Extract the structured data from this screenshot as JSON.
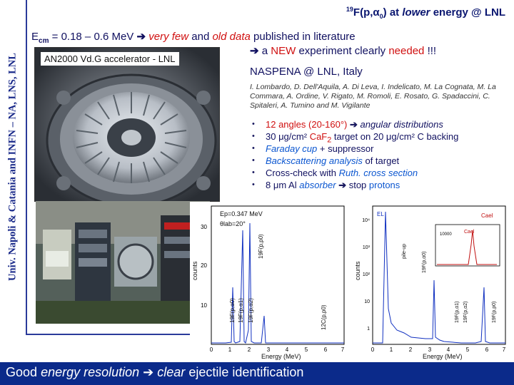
{
  "sidebar": {
    "institution": "Univ. Napoli & Catania and INFN – NA, LNS, LNL"
  },
  "title": {
    "iso_mass": "19",
    "reaction_pre": "F(p,",
    "alpha": "α",
    "alpha_sub": "0",
    "reaction_post": ") at",
    "lower": "lower",
    "energy_post": "energy @ LNL"
  },
  "intro": {
    "e": "E",
    "cm": "cm",
    "range": "= 0.18 – 0.6 MeV",
    "arrow": "➔",
    "very_few": "very few",
    "and": "and",
    "old_data": "old data",
    "published": "published in literature",
    "new_pre": "a",
    "new_word": "NEW",
    "new_experiment": "experiment clearly",
    "needed": "needed",
    "bangs": "!!!"
  },
  "photos": {
    "accelerator_label": "AN2000 Vd.G accelerator - LNL"
  },
  "naspena": {
    "label": "NASPENA @ LNL, Italy"
  },
  "authors": {
    "text": "I. Lombardo, D. Dell'Aquila, A. Di Leva, I. Indelicato, M. La Cognata, M. La Commara, A. Ordine, V. Rigato, M. Romoli, E. Rosato, G. Spadaccini, C. Spitaleri, A. Tumino and M. Vigilante"
  },
  "bullets": {
    "b1_a": "12 angles",
    "b1_b": "(20-160°)",
    "b1_c": "angular distributions",
    "b2_a": "30 μg/cm²",
    "b2_b": "CaF",
    "b2_sub": "2",
    "b2_c": "target on 20 μg/cm² C backing",
    "b3_a": "Faraday cup",
    "b3_b": "+ suppressor",
    "b4_a": "Backscattering analysis",
    "b4_b": "of target",
    "b5_a": "Cross-check with",
    "b5_b": "Ruth. cross section",
    "b6_a": "8 μm Al",
    "b6_b": "absorber",
    "b6_c": "stop",
    "b6_d": "protons",
    "arrow": "➔"
  },
  "spectra": {
    "left": {
      "ep": "Ep=0.347 MeV",
      "theta": "θlab=20°",
      "ylabel": "counts",
      "xlabel": "Energy (MeV)",
      "yticks": [
        "10",
        "20",
        "30"
      ],
      "xticks": [
        "0",
        "1",
        "2",
        "3",
        "4",
        "5",
        "6",
        "7"
      ],
      "peak_labels": [
        "19F(p,p0)",
        "19F(p,α0)",
        "19F(p,α1)",
        "19F(p,α2)",
        "12C(p,p0)"
      ]
    },
    "right": {
      "el": "EL",
      "ca": "Cael",
      "inset": "Cael",
      "inset_tick": "10000",
      "ylabel": "counts",
      "xlabel": "Energy (MeV)",
      "yticks": [
        "1",
        "10",
        "10²",
        "10³",
        "10⁴"
      ],
      "xticks": [
        "0",
        "1",
        "2",
        "3",
        "4",
        "5",
        "6",
        "7"
      ],
      "peak_labels": [
        "pile-up",
        "19F(p,α0)",
        "19F(p,α1)",
        "19F(p,α2)",
        "19F(p,p0)"
      ]
    }
  },
  "footer": {
    "good": "Good",
    "energy_resolution": "energy resolution",
    "arrow": "➔",
    "clear": "clear",
    "ejectile": "ejectile identification"
  },
  "colors": {
    "navy": "#0b2a8a",
    "red": "#d01010",
    "blue": "#0b56d0"
  }
}
